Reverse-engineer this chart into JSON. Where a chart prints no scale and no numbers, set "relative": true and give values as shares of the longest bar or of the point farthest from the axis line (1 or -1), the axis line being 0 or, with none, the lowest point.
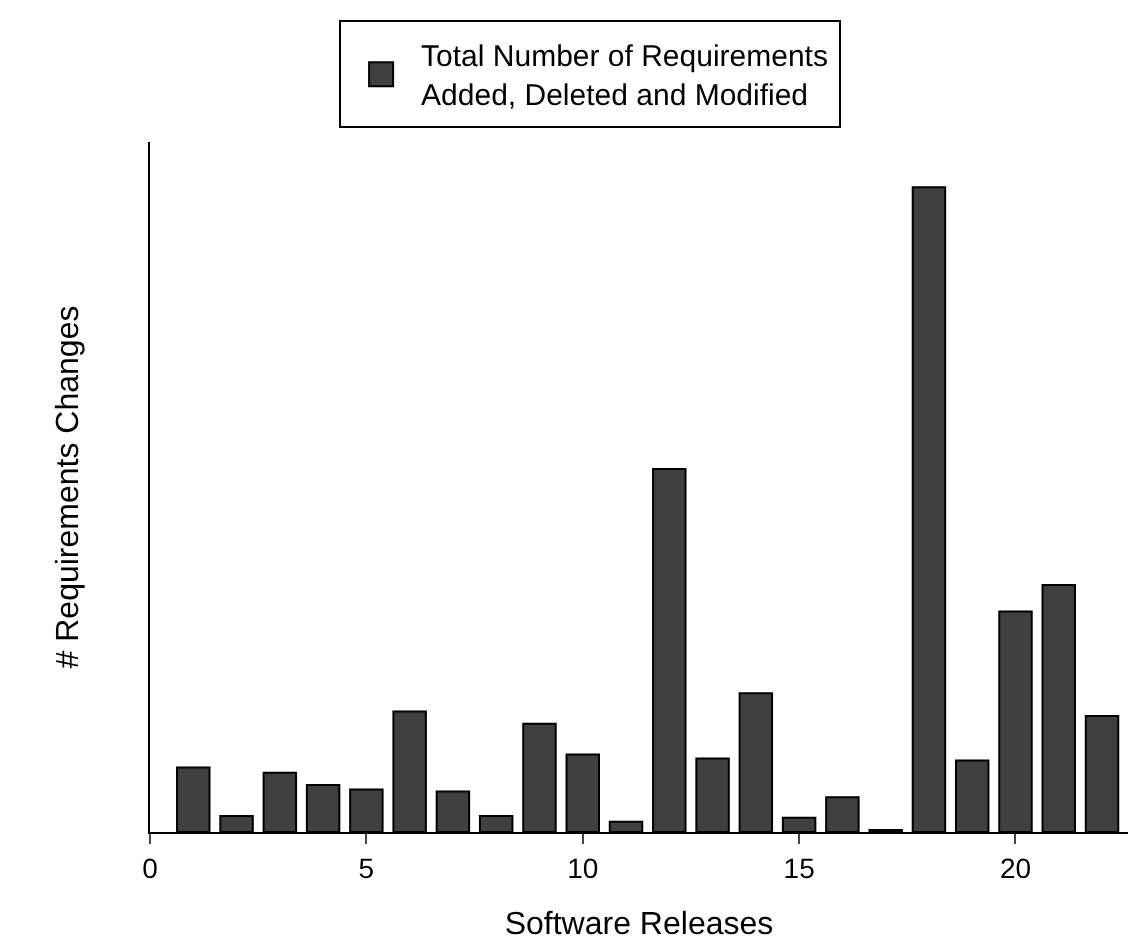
{
  "chart_data": {
    "type": "bar",
    "xlabel": "Software Releases",
    "ylabel": "# Requirements Changes",
    "relative": true,
    "x": [
      1,
      2,
      3,
      4,
      5,
      6,
      7,
      8,
      9,
      10,
      11,
      12,
      13,
      14,
      15,
      16,
      17,
      18,
      19,
      20,
      21,
      22
    ],
    "series": [
      {
        "name": "Total Number of Requirements Added, Deleted and Modified",
        "color": "#404040",
        "values": [
          0.1,
          0.025,
          0.092,
          0.073,
          0.066,
          0.187,
          0.063,
          0.025,
          0.168,
          0.12,
          0.016,
          0.563,
          0.114,
          0.215,
          0.022,
          0.054,
          0.003,
          1,
          0.111,
          0.342,
          0.383,
          0.18
        ]
      }
    ],
    "xlim": [
      0,
      22.6
    ],
    "xticks": [
      0,
      5,
      10,
      15,
      20
    ],
    "legend": "top"
  }
}
